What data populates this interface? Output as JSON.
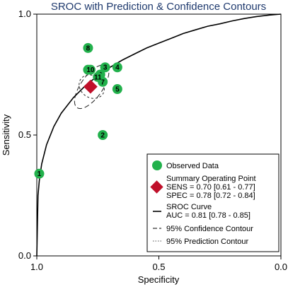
{
  "chart_data": {
    "type": "scatter",
    "title": "SROC with Prediction & Confidence Contours",
    "xlabel": "Specificity",
    "ylabel": "Sensitivity",
    "x_axis": {
      "reversed": true,
      "min": 0.0,
      "max": 1.0,
      "ticks": [
        "1.0",
        "0.5",
        "0.0"
      ],
      "tick_values": [
        1.0,
        0.5,
        0.0
      ]
    },
    "y_axis": {
      "min": 0.0,
      "max": 1.0,
      "ticks": [
        "0.0",
        "0.5",
        "1.0"
      ],
      "tick_values": [
        0.0,
        0.5,
        1.0
      ]
    },
    "grid": false,
    "legend_position": "bottom-right",
    "observed_studies": [
      {
        "label": "1",
        "specificity": 0.99,
        "sensitivity": 0.34
      },
      {
        "label": "2",
        "specificity": 0.73,
        "sensitivity": 0.5
      },
      {
        "label": "3",
        "specificity": 0.72,
        "sensitivity": 0.78
      },
      {
        "label": "4",
        "specificity": 0.67,
        "sensitivity": 0.78
      },
      {
        "label": "5",
        "specificity": 0.67,
        "sensitivity": 0.69
      },
      {
        "label": "6",
        "specificity": 0.74,
        "sensitivity": 0.75
      },
      {
        "label": "7",
        "specificity": 0.73,
        "sensitivity": 0.72
      },
      {
        "label": "8",
        "specificity": 0.79,
        "sensitivity": 0.86
      },
      {
        "label": "9",
        "specificity": 0.79,
        "sensitivity": 0.77
      },
      {
        "label": "10",
        "specificity": 0.78,
        "sensitivity": 0.77
      },
      {
        "label": "11",
        "specificity": 0.75,
        "sensitivity": 0.74
      }
    ],
    "summary_point": {
      "specificity": 0.78,
      "sensitivity": 0.7
    },
    "sroc_curve": {
      "auc": 0.81,
      "points": [
        [
          1.0,
          0.0
        ],
        [
          0.995,
          0.25
        ],
        [
          0.99,
          0.31
        ],
        [
          0.98,
          0.38
        ],
        [
          0.96,
          0.46
        ],
        [
          0.93,
          0.535
        ],
        [
          0.9,
          0.59
        ],
        [
          0.85,
          0.655
        ],
        [
          0.8,
          0.705
        ],
        [
          0.75,
          0.745
        ],
        [
          0.7,
          0.78
        ],
        [
          0.65,
          0.81
        ],
        [
          0.6,
          0.835
        ],
        [
          0.55,
          0.86
        ],
        [
          0.5,
          0.88
        ],
        [
          0.45,
          0.9
        ],
        [
          0.4,
          0.92
        ],
        [
          0.35,
          0.935
        ],
        [
          0.3,
          0.95
        ],
        [
          0.25,
          0.96
        ],
        [
          0.2,
          0.972
        ],
        [
          0.15,
          0.982
        ],
        [
          0.1,
          0.99
        ],
        [
          0.05,
          0.996
        ],
        [
          0.0,
          1.0
        ]
      ]
    },
    "confidence_contour": {
      "center": [
        0.775,
        0.7
      ],
      "rx": 0.045,
      "ry": 0.055,
      "rotation_deg": -55
    },
    "prediction_contour": {
      "center": [
        0.775,
        0.7
      ],
      "rx": 0.105,
      "ry": 0.045,
      "rotation_deg": -55
    },
    "legend": {
      "observed": "Observed Data",
      "summary_title": "Summary Operating Point",
      "sens": "SENS = 0.70 [0.61 - 0.77]",
      "spec": "SPEC = 0.78 [0.72 - 0.84]",
      "sroc_title": "SROC Curve",
      "auc": "AUC = 0.81 [0.78 - 0.85]",
      "confidence": "95% Confidence Contour",
      "prediction": "95% Prediction Contour"
    },
    "colors": {
      "observed": "#22b14c",
      "summary": "#c0102a",
      "title": "#1f3a6e",
      "curve": "#000000"
    }
  }
}
